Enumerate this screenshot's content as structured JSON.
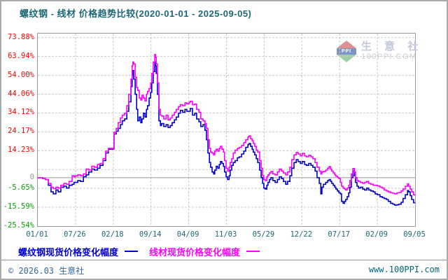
{
  "header": {
    "title": "螺纹钢 - 线材 价格趋势比较(2020-01-01 - 2025-09-05)"
  },
  "watermark": {
    "logo_text": "PPI",
    "name_cn": "生 意 社",
    "site": "100PPI.COM"
  },
  "legend": {
    "items": [
      {
        "label": "螺纹钢现货价格变化幅度",
        "color": "#0000cc"
      },
      {
        "label": "线材现货价格变化幅度",
        "color": "#ff00ff"
      }
    ]
  },
  "footer": {
    "copyright": "© 2026.03 生意社",
    "site": "www.100PPI.com"
  },
  "colors": {
    "title_text": "#1d6878",
    "axis_positive": "#ff0000",
    "axis_negative": "#00a000",
    "axis_zero_label": "#999999",
    "grid": "#c9c9c9",
    "plot_border": "#999999",
    "zero_line": "#999999"
  },
  "chart_data": {
    "type": "line",
    "title": "螺纹钢 - 线材 价格趋势比较(2020-01-01 - 2025-09-05)",
    "grid": "dashed",
    "legend_position": "bottom",
    "x_axis": {
      "tick_labels": [
        "01/01",
        "07/26",
        "02/18",
        "09/14",
        "04/09",
        "11/03",
        "05/29",
        "12/22",
        "07/17",
        "02/09",
        "09/05"
      ],
      "tick_dates": [
        "2020-01-01",
        "2020-07-26",
        "2021-02-18",
        "2021-09-14",
        "2022-04-09",
        "2022-11-03",
        "2023-05-29",
        "2023-12-22",
        "2024-07-17",
        "2025-02-09",
        "2025-09-05"
      ],
      "range_dates": [
        "2020-01-01",
        "2025-09-05"
      ]
    },
    "y_axis": {
      "unit": "%",
      "ylim": [
        -25.54,
        76.0
      ],
      "tick_values": [
        73.88,
        63.94,
        54.0,
        44.06,
        34.12,
        24.17,
        14.23,
        4.29,
        0,
        -5.65,
        -15.59,
        -25.54
      ],
      "tick_labels": [
        "73.88%",
        "63.94%",
        "54.00%",
        "44.06%",
        "34.12%",
        "24.17%",
        "14.23%",
        "",
        "0",
        "-5.65%",
        "-15.59%",
        "-25.54%"
      ]
    },
    "x": [
      0.0,
      0.013,
      0.02,
      0.028,
      0.035,
      0.041,
      0.048,
      0.054,
      0.061,
      0.069,
      0.076,
      0.083,
      0.091,
      0.096,
      0.1,
      0.106,
      0.113,
      0.121,
      0.128,
      0.135,
      0.143,
      0.15,
      0.158,
      0.165,
      0.173,
      0.18,
      0.187,
      0.195,
      0.199,
      0.202,
      0.208,
      0.213,
      0.219,
      0.224,
      0.23,
      0.236,
      0.241,
      0.247,
      0.25,
      0.252,
      0.254,
      0.258,
      0.262,
      0.265,
      0.269,
      0.273,
      0.276,
      0.28,
      0.284,
      0.288,
      0.291,
      0.295,
      0.299,
      0.302,
      0.306,
      0.31,
      0.312,
      0.314,
      0.317,
      0.321,
      0.325,
      0.328,
      0.334,
      0.34,
      0.345,
      0.351,
      0.356,
      0.362,
      0.367,
      0.373,
      0.378,
      0.384,
      0.39,
      0.395,
      0.401,
      0.404,
      0.41,
      0.416,
      0.421,
      0.427,
      0.432,
      0.438,
      0.443,
      0.447,
      0.451,
      0.455,
      0.458,
      0.462,
      0.466,
      0.469,
      0.473,
      0.477,
      0.481,
      0.484,
      0.488,
      0.492,
      0.495,
      0.499,
      0.503,
      0.507,
      0.51,
      0.514,
      0.518,
      0.523,
      0.529,
      0.534,
      0.54,
      0.546,
      0.551,
      0.557,
      0.56,
      0.564,
      0.568,
      0.571,
      0.575,
      0.579,
      0.583,
      0.588,
      0.592,
      0.596,
      0.599,
      0.603,
      0.607,
      0.61,
      0.614,
      0.618,
      0.623,
      0.629,
      0.635,
      0.64,
      0.646,
      0.651,
      0.657,
      0.662,
      0.668,
      0.673,
      0.679,
      0.685,
      0.69,
      0.696,
      0.701,
      0.707,
      0.712,
      0.718,
      0.724,
      0.729,
      0.735,
      0.74,
      0.746,
      0.75,
      0.753,
      0.757,
      0.763,
      0.768,
      0.772,
      0.776,
      0.779,
      0.783,
      0.787,
      0.79,
      0.794,
      0.798,
      0.802,
      0.805,
      0.809,
      0.813,
      0.816,
      0.82,
      0.824,
      0.827,
      0.831,
      0.835,
      0.839,
      0.842,
      0.846,
      0.85,
      0.855,
      0.861,
      0.866,
      0.872,
      0.877,
      0.883,
      0.889,
      0.894,
      0.9,
      0.907,
      0.913,
      0.918,
      0.924,
      0.929,
      0.935,
      0.941,
      0.946,
      0.952,
      0.957,
      0.963,
      0.968,
      0.974,
      0.98,
      0.983,
      0.987,
      0.991,
      0.996,
      1.0
    ],
    "series": [
      {
        "name": "螺纹钢现货价格变化幅度",
        "color": "#0000cc",
        "values": [
          0,
          -0.5,
          -1,
          -4,
          -7.5,
          -8.5,
          -6.5,
          -7.5,
          -5,
          -4.5,
          -5.5,
          -4,
          -3.5,
          -2.5,
          -2.5,
          -1.5,
          -2,
          0.5,
          1.5,
          3,
          4.5,
          4,
          5,
          6.5,
          9,
          13,
          15,
          15,
          15.2,
          23,
          24.5,
          26,
          28,
          30,
          31,
          35,
          40,
          48,
          54,
          56.5,
          52,
          44,
          36,
          30,
          32,
          29,
          31,
          34,
          32,
          36,
          38,
          42,
          45,
          50,
          56,
          61,
          59,
          55,
          44,
          30,
          27.5,
          28.5,
          27,
          28,
          26.5,
          27.5,
          29,
          30.5,
          32,
          34,
          35.5,
          34.5,
          36,
          35,
          35,
          36.5,
          33,
          34,
          31,
          29.5,
          27,
          28,
          25,
          20,
          13,
          8,
          5.5,
          3,
          2,
          4,
          6,
          5,
          7,
          8.5,
          7.5,
          6,
          3,
          0.5,
          -1,
          1,
          4,
          6.5,
          8,
          9,
          10.5,
          11,
          12.5,
          14,
          16,
          17.5,
          18,
          16.5,
          15,
          13.5,
          12,
          10,
          8,
          4,
          0,
          -3,
          -5.5,
          -6,
          -4,
          -2.5,
          -1,
          0,
          -1.5,
          -2.5,
          -1,
          0.5,
          -0.5,
          -2,
          -3.5,
          -2,
          1,
          5,
          8,
          9.5,
          8.5,
          7.5,
          8.5,
          7,
          6.5,
          7.5,
          6.5,
          5.5,
          3.5,
          0,
          -3,
          -8.5,
          -5,
          -3.5,
          -2.5,
          -1.5,
          -1,
          -2,
          -3,
          -4,
          -5,
          -6,
          -7,
          -8,
          -8.5,
          -12.5,
          -13.5,
          -12.5,
          -11.5,
          -10,
          -8,
          -5,
          0,
          3.5,
          1,
          -2.5,
          -4.5,
          -5.5,
          -5,
          -6,
          -6.5,
          -5.5,
          -6.5,
          -7,
          -7.5,
          -8.5,
          -9,
          -10,
          -10.5,
          -11,
          -11.5,
          -12.5,
          -13.5,
          -14,
          -14.5,
          -14.3,
          -14,
          -13,
          -11,
          -9,
          -6.8,
          -7.5,
          -9.5,
          -11.5,
          -13.2,
          -13.5
        ]
      },
      {
        "name": "线材现货价格变化幅度",
        "color": "#ff00ff",
        "values": [
          0,
          -0.5,
          -1,
          -3,
          -5,
          -5.8,
          -5,
          -5.5,
          -4,
          -3,
          -3.5,
          -2,
          1,
          0.5,
          1,
          1.5,
          1,
          2,
          4.5,
          4,
          6,
          5.5,
          7,
          7.5,
          10,
          14,
          15.5,
          15.3,
          15.5,
          24,
          26,
          29,
          31.5,
          33,
          34,
          38,
          44,
          52,
          59,
          61,
          60,
          53,
          47.5,
          46,
          42,
          41,
          43.5,
          42,
          40.5,
          44,
          45.5,
          47,
          50,
          55,
          61,
          65,
          63.5,
          60,
          50,
          36,
          33,
          32.5,
          31,
          33,
          30.5,
          31.5,
          33,
          34.5,
          36,
          37.5,
          38.5,
          38,
          39.5,
          39,
          39.7,
          40.3,
          38.5,
          38.8,
          36,
          34.5,
          31,
          30,
          28.5,
          26,
          20,
          15.5,
          13.5,
          13,
          12,
          14,
          15,
          14,
          15.5,
          16.5,
          15,
          13.5,
          9,
          5,
          3.5,
          5.5,
          8,
          10,
          13,
          14.5,
          15.5,
          16,
          17,
          18.5,
          20,
          21.5,
          22,
          20.5,
          19.5,
          18,
          16.5,
          14.5,
          13.5,
          9,
          5,
          1,
          -1,
          -1.5,
          0.5,
          1.5,
          2.5,
          3.3,
          2,
          1.5,
          3,
          4.5,
          3.5,
          2.5,
          1.5,
          3,
          5.5,
          9.5,
          12,
          13.3,
          12.5,
          11.5,
          12.8,
          11.5,
          11,
          11.8,
          11,
          10,
          8,
          5.5,
          3.5,
          2,
          3,
          3.3,
          4,
          5,
          5.9,
          4.5,
          3.5,
          2.5,
          1.5,
          0.8,
          0.2,
          -0.5,
          -2.5,
          -4.5,
          -5.5,
          -6,
          -6.5,
          -5.5,
          -4,
          -1.5,
          2,
          4.8,
          3,
          0,
          -1.5,
          -2,
          -2.5,
          -3,
          -2.5,
          -2,
          -3,
          -3.5,
          -4,
          -4,
          -4.4,
          -5,
          -5.5,
          -6.5,
          -7,
          -7.5,
          -8,
          -8.2,
          -8.5,
          -8,
          -7.8,
          -7,
          -6,
          -4.5,
          -3.2,
          -4.5,
          -6,
          -7.5,
          -9,
          -9.5
        ]
      }
    ]
  }
}
